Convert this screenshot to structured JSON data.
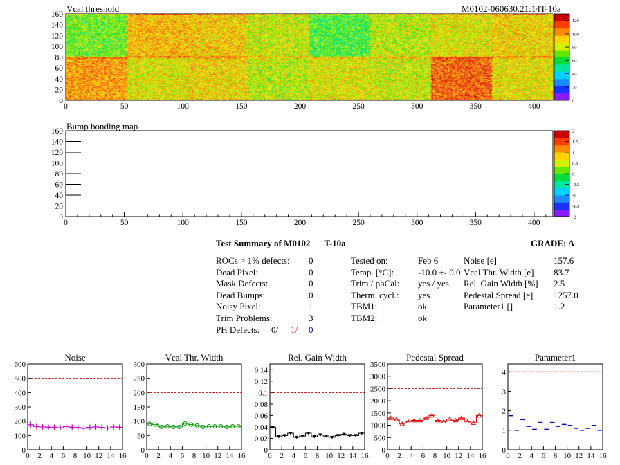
{
  "header": {
    "title": "Vcal threshold",
    "module_id": "M0102-060630.21:14T-10a"
  },
  "colors": {
    "threshold_palette": [
      "#8a1aff",
      "#1a32ff",
      "#1a8cff",
      "#00d2ff",
      "#00e6a0",
      "#00dc3c",
      "#64e600",
      "#d2f000",
      "#ffd200",
      "#ff8c00",
      "#ff3c00",
      "#c80000"
    ],
    "red": "#d00000",
    "blue": "#0000d0",
    "noise": "#cc00cc",
    "vcal_width": "#009900",
    "gain_width": "#000000",
    "pedestal": "#dd0000",
    "parameter1": "#0000cc",
    "limit_line": "#cc0000"
  },
  "threshold_map": {
    "title": "Vcal threshold",
    "xticks": [
      "0",
      "50",
      "100",
      "150",
      "200",
      "250",
      "300",
      "350",
      "400"
    ],
    "yticks": [
      "0",
      "20",
      "40",
      "60",
      "80",
      "100",
      "120",
      "140",
      "160"
    ],
    "xlim": [
      0,
      416
    ],
    "ylim": [
      0,
      160
    ],
    "zticks": [
      "0",
      "20",
      "40",
      "60",
      "80",
      "100",
      "120"
    ],
    "zlim": [
      0,
      130
    ]
  },
  "bump_map": {
    "title": "Bump bonding map",
    "xticks": [
      "0",
      "50",
      "100",
      "150",
      "200",
      "250",
      "300",
      "350",
      "400"
    ],
    "yticks": [
      "0",
      "20",
      "40",
      "60",
      "80",
      "100",
      "120",
      "140",
      "160"
    ],
    "xlim": [
      0,
      416
    ],
    "ylim": [
      0,
      160
    ],
    "zticks": [
      "-2",
      "-1.5",
      "-1",
      "-0.5",
      "0",
      "0.5",
      "1",
      "1.5",
      "2"
    ],
    "zlim": [
      -2,
      2
    ]
  },
  "summary": {
    "title": "Test Summary of M0102",
    "temperature_tag": "T-10a",
    "grade_label": "GRADE:",
    "grade": "A",
    "col1": [
      {
        "label": "ROCs > 1% defects:",
        "value": "0"
      },
      {
        "label": "Dead Pixel:",
        "value": "0"
      },
      {
        "label": "Mask Defects:",
        "value": "0"
      },
      {
        "label": "Dead Bumps:",
        "value": "0"
      },
      {
        "label": "Noisy Pixel:",
        "value": "1"
      },
      {
        "label": "Trim Problems:",
        "value": "3"
      }
    ],
    "ph_defects": {
      "label": "PH Defects:",
      "v1": "0/",
      "v2": "1/",
      "v3": "0"
    },
    "col2": [
      {
        "label": "Tested on:",
        "value": "Feb 6"
      },
      {
        "label": "Temp. [°C]:",
        "value": "-10.0 +- 0.0"
      },
      {
        "label": "Trim / phCal:",
        "value": "yes / yes"
      },
      {
        "label": "Therm. cycl.:",
        "value": "yes"
      },
      {
        "label": "TBM1:",
        "value": "ok"
      },
      {
        "label": "TBM2:",
        "value": "ok"
      }
    ],
    "col3": [
      {
        "label": "Noise [e]",
        "value": "157.6"
      },
      {
        "label": "Vcal Thr. Width [e]",
        "value": "83.7"
      },
      {
        "label": "Rel. Gain Width [%]",
        "value": "2.5"
      },
      {
        "label": "Pedestal Spread [e]",
        "value": "1257.0"
      },
      {
        "label": "Parameter1 []",
        "value": "1.2"
      }
    ]
  },
  "chart_data": [
    {
      "type": "heatmap",
      "title": "Vcal threshold",
      "xlabel": "",
      "ylabel": "",
      "xlim": [
        0,
        416
      ],
      "ylim": [
        0,
        160
      ],
      "zlim": [
        0,
        130
      ],
      "roc_grid": {
        "columns": 8,
        "rows": 2,
        "roc_cols": 52,
        "roc_rows": 80
      },
      "roc_mean_threshold": {
        "top": [
          100,
          85,
          90,
          80,
          85,
          82,
          110,
          88
        ],
        "bottom": [
          70,
          95,
          92,
          82,
          65,
          80,
          85,
          90
        ]
      }
    },
    {
      "type": "heatmap",
      "title": "Bump bonding map",
      "xlabel": "",
      "ylabel": "",
      "xlim": [
        0,
        416
      ],
      "ylim": [
        0,
        160
      ],
      "zlim": [
        -2,
        2
      ],
      "values": []
    },
    {
      "type": "line",
      "title": "Noise",
      "x": [
        0,
        1,
        2,
        3,
        4,
        5,
        6,
        7,
        8,
        9,
        10,
        11,
        12,
        13,
        14,
        15
      ],
      "values": [
        175,
        163,
        160,
        158,
        158,
        155,
        162,
        158,
        156,
        150,
        157,
        160,
        157,
        152,
        160,
        158
      ],
      "limit": 500,
      "xlim": [
        0,
        16
      ],
      "ylim": [
        0,
        600
      ],
      "yticks": [
        "0",
        "100",
        "200",
        "300",
        "400",
        "500",
        "600"
      ],
      "xticks": [
        "0",
        "2",
        "4",
        "6",
        "8",
        "10",
        "12",
        "14",
        "16"
      ]
    },
    {
      "type": "line",
      "title": "Vcal Thr. Width",
      "x": [
        0,
        1,
        2,
        3,
        4,
        5,
        6,
        7,
        8,
        9,
        10,
        11,
        12,
        13,
        14,
        15
      ],
      "values": [
        90,
        88,
        80,
        82,
        80,
        80,
        92,
        88,
        85,
        80,
        82,
        82,
        82,
        80,
        82,
        82
      ],
      "limit": 200,
      "xlim": [
        0,
        16
      ],
      "ylim": [
        0,
        300
      ],
      "yticks": [
        "0",
        "50",
        "100",
        "150",
        "200",
        "250",
        "300"
      ],
      "xticks": [
        "0",
        "2",
        "4",
        "6",
        "8",
        "10",
        "12",
        "14",
        "16"
      ]
    },
    {
      "type": "line",
      "title": "Rel. Gain Width",
      "x": [
        0,
        1,
        2,
        3,
        4,
        5,
        6,
        7,
        8,
        9,
        10,
        11,
        12,
        13,
        14,
        15
      ],
      "values": [
        0.039,
        0.023,
        0.025,
        0.029,
        0.022,
        0.024,
        0.029,
        0.023,
        0.026,
        0.024,
        0.022,
        0.025,
        0.027,
        0.025,
        0.025,
        0.029
      ],
      "limit": 0.1,
      "xlim": [
        0,
        16
      ],
      "ylim": [
        0,
        0.15
      ],
      "yticks": [
        "0",
        "0.02",
        "0.04",
        "0.06",
        "0.08",
        "0.1",
        "0.12",
        "0.14"
      ],
      "xticks": [
        "0",
        "2",
        "4",
        "6",
        "8",
        "10",
        "12",
        "14",
        "16"
      ]
    },
    {
      "type": "line",
      "title": "Pedestal Spread",
      "x": [
        0,
        1,
        2,
        3,
        4,
        5,
        6,
        7,
        8,
        9,
        10,
        11,
        12,
        13,
        14,
        15
      ],
      "values": [
        1300,
        1250,
        1050,
        1150,
        1200,
        1200,
        1300,
        1400,
        1200,
        1150,
        1250,
        1200,
        1300,
        1150,
        1100,
        1400
      ],
      "limit": 2500,
      "xlim": [
        0,
        16
      ],
      "ylim": [
        0,
        3500
      ],
      "yticks": [
        "0",
        "500",
        "1000",
        "1500",
        "2000",
        "2500",
        "3000",
        "3500"
      ],
      "xticks": [
        "0",
        "2",
        "4",
        "6",
        "8",
        "10",
        "12",
        "14",
        "16"
      ]
    },
    {
      "type": "scatter",
      "title": "Parameter1",
      "x": [
        0,
        1,
        2,
        3,
        4,
        5,
        6,
        7,
        8,
        9,
        10,
        11,
        12,
        13,
        14,
        15
      ],
      "values": [
        1.75,
        1.0,
        1.55,
        1.2,
        1.05,
        1.4,
        1.05,
        1.4,
        1.2,
        1.3,
        1.25,
        1.1,
        1.0,
        1.1,
        1.25,
        1.0
      ],
      "limit": 4,
      "xlim": [
        0,
        16
      ],
      "ylim": [
        0,
        4.4
      ],
      "yticks": [
        "0",
        "1",
        "2",
        "3",
        "4"
      ],
      "xticks": [
        "0",
        "2",
        "4",
        "6",
        "8",
        "10",
        "12",
        "14",
        "16"
      ]
    }
  ]
}
